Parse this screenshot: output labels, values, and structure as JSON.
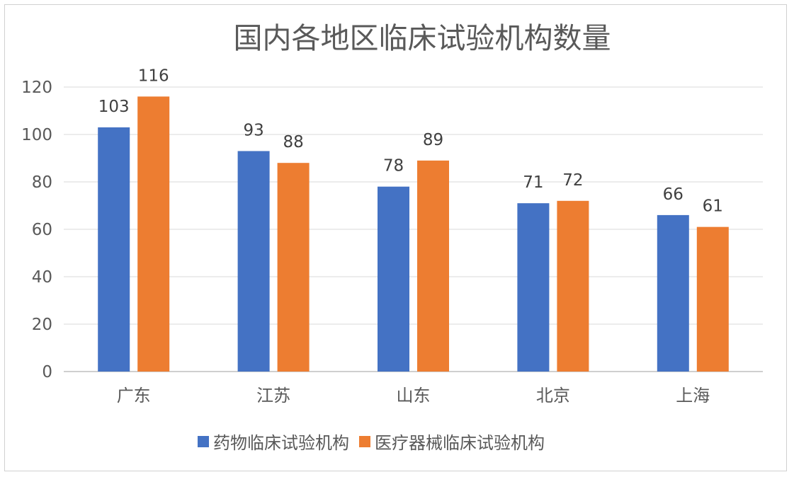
{
  "chart_data": {
    "type": "bar",
    "title": "国内各地区临床试验机构数量",
    "categories": [
      "广东",
      "江苏",
      "山东",
      "北京",
      "上海"
    ],
    "series": [
      {
        "name": "药物临床试验机构",
        "values": [
          103,
          93,
          78,
          71,
          66
        ],
        "color": "#4472C4"
      },
      {
        "name": "医疗器械临床试验机构",
        "values": [
          116,
          88,
          89,
          72,
          61
        ],
        "color": "#ED7D31"
      }
    ],
    "ylim": [
      0,
      120
    ],
    "yticks": [
      0,
      20,
      40,
      60,
      80,
      100,
      120
    ],
    "grid": true,
    "legend_position": "bottom",
    "data_labels": true,
    "xlabel": "",
    "ylabel": ""
  }
}
